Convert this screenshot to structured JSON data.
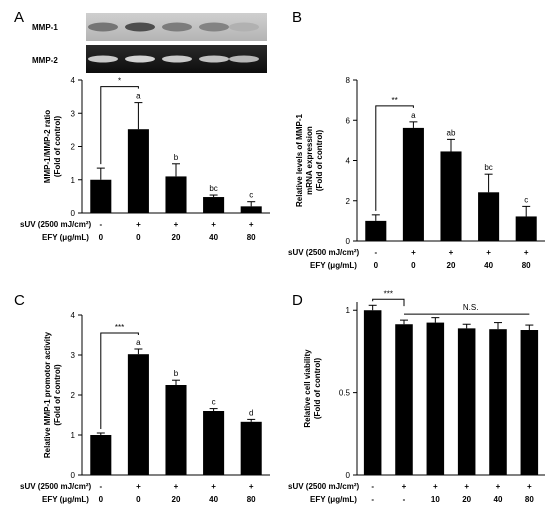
{
  "colors": {
    "bar": "#000000",
    "axis": "#000000",
    "blot_bg_top": "#bdbdbd",
    "blot_bg_bottom": "#1a1a1a",
    "band_top": "#444444",
    "band_bottom": "#d8d8d8"
  },
  "blot": {
    "labels": [
      "MMP-1",
      "MMP-2"
    ],
    "band_intensity_mmp1": [
      0.55,
      0.85,
      0.5,
      0.45,
      0.1
    ],
    "band_intensity_mmp2": [
      0.9,
      0.95,
      0.9,
      0.85,
      0.8
    ]
  },
  "chart_data": [
    {
      "panel": "A",
      "type": "bar",
      "categories": [
        "1",
        "2",
        "3",
        "4",
        "5"
      ],
      "values": [
        1.0,
        2.52,
        1.1,
        0.48,
        0.2
      ],
      "errors": [
        0.35,
        0.8,
        0.38,
        0.06,
        0.14
      ],
      "letters": [
        "",
        "a",
        "b",
        "bc",
        "c"
      ],
      "ylabel_lines": [
        "MMP-1/MMP-2 ratio",
        "(Fold of control)"
      ],
      "ylim": [
        0,
        4
      ],
      "ticks": [
        "0",
        "1",
        "2",
        "3",
        "4"
      ],
      "tick_values": [
        0,
        1,
        2,
        3,
        4
      ],
      "sig": {
        "from": 0,
        "to": 1,
        "label": "*"
      },
      "row_labels": [
        "sUV (2500 mJ/cm²)",
        "EFY (μg/mL)"
      ],
      "suv": [
        "-",
        "+",
        "+",
        "+",
        "+"
      ],
      "efy": [
        "0",
        "0",
        "20",
        "40",
        "80"
      ]
    },
    {
      "panel": "B",
      "type": "bar",
      "categories": [
        "1",
        "2",
        "3",
        "4",
        "5"
      ],
      "values": [
        1.0,
        5.62,
        4.45,
        2.42,
        1.22
      ],
      "errors": [
        0.3,
        0.3,
        0.6,
        0.9,
        0.5
      ],
      "letters": [
        "",
        "a",
        "ab",
        "bc",
        "c"
      ],
      "ylabel_lines": [
        "Relative levels of MMP-1",
        "mRNA expression",
        "(Fold of control)"
      ],
      "ylim": [
        0,
        8
      ],
      "ticks": [
        "0",
        "2",
        "4",
        "6",
        "8"
      ],
      "tick_values": [
        0,
        2,
        4,
        6,
        8
      ],
      "sig": {
        "from": 0,
        "to": 1,
        "label": "**"
      },
      "row_labels": [
        "sUV (2500 mJ/cm²)",
        "EFY (μg/mL)"
      ],
      "suv": [
        "-",
        "+",
        "+",
        "+",
        "+"
      ],
      "efy": [
        "0",
        "0",
        "20",
        "40",
        "80"
      ]
    },
    {
      "panel": "C",
      "type": "bar",
      "categories": [
        "1",
        "2",
        "3",
        "4",
        "5"
      ],
      "values": [
        1.0,
        3.02,
        2.25,
        1.6,
        1.33
      ],
      "errors": [
        0.05,
        0.13,
        0.12,
        0.06,
        0.06
      ],
      "letters": [
        "",
        "a",
        "b",
        "c",
        "d"
      ],
      "ylabel_lines": [
        "Relative MMP-1 promotor activity",
        "(Fold of control)"
      ],
      "ylim": [
        0,
        4
      ],
      "ticks": [
        "0",
        "1",
        "2",
        "3",
        "4"
      ],
      "tick_values": [
        0,
        1,
        2,
        3,
        4
      ],
      "sig": {
        "from": 0,
        "to": 1,
        "label": "***"
      },
      "row_labels": [
        "sUV (2500 mJ/cm²)",
        "EFY (μg/mL)"
      ],
      "suv": [
        "-",
        "+",
        "+",
        "+",
        "+"
      ],
      "efy": [
        "0",
        "0",
        "20",
        "40",
        "80"
      ]
    },
    {
      "panel": "D",
      "type": "bar",
      "categories": [
        "1",
        "2",
        "3",
        "4",
        "5",
        "6"
      ],
      "values": [
        1.0,
        0.915,
        0.925,
        0.89,
        0.885,
        0.88
      ],
      "errors": [
        0.03,
        0.025,
        0.03,
        0.025,
        0.04,
        0.03
      ],
      "letters": [
        "",
        "",
        "",
        "",
        "",
        ""
      ],
      "ylabel_lines": [
        "Relative cell viability",
        "(Fold of control)"
      ],
      "ylim": [
        0,
        1.05
      ],
      "ticks": [
        "0",
        "0.5",
        "1"
      ],
      "tick_values": [
        0,
        0.5,
        1
      ],
      "sig": {
        "from": 0,
        "to": 1,
        "label": "***"
      },
      "ns": {
        "from": 1,
        "to": 5,
        "label": "N.S."
      },
      "row_labels": [
        "sUV (2500 mJ/cm²)",
        "EFY (μg/mL)"
      ],
      "suv": [
        "-",
        "+",
        "+",
        "+",
        "+",
        "+"
      ],
      "efy": [
        "-",
        "-",
        "10",
        "20",
        "40",
        "80"
      ]
    }
  ]
}
